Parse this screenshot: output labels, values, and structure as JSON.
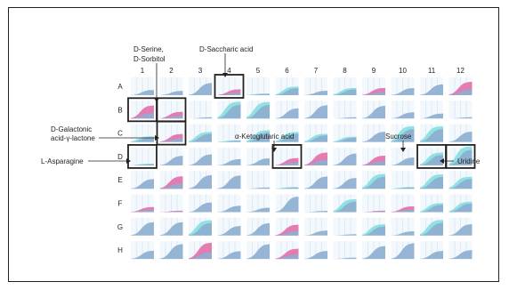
{
  "plate": {
    "columns": [
      "1",
      "2",
      "3",
      "4",
      "5",
      "6",
      "7",
      "8",
      "9",
      "10",
      "11",
      "12"
    ],
    "rows": [
      "A",
      "B",
      "C",
      "D",
      "E",
      "F",
      "G",
      "H"
    ]
  },
  "colors": {
    "blue_curve": "#8eaecf",
    "pink_curve": "#e47bb1",
    "cyan_curve": "#8fe1e4",
    "grid_line": "#c9dcf0",
    "highlight_border": "#222222"
  },
  "annotations": {
    "serine_sorbitol": "D-Serine,\nD-Sorbitol",
    "saccharic_acid": "D-Saccharic acid",
    "galactonic_lactone_line1": "D-Galactonic",
    "galactonic_lactone_line2": "acid-γ-lactone",
    "asparagine": "L-Asparagine",
    "ketoglutaric": "α-Ketoglutaric acid",
    "sucrose": "Sucrose",
    "uridine": "Uridine"
  },
  "highlighted_wells": [
    "B1",
    "B2",
    "A4",
    "C2",
    "D1",
    "D6",
    "D11",
    "D12"
  ]
}
